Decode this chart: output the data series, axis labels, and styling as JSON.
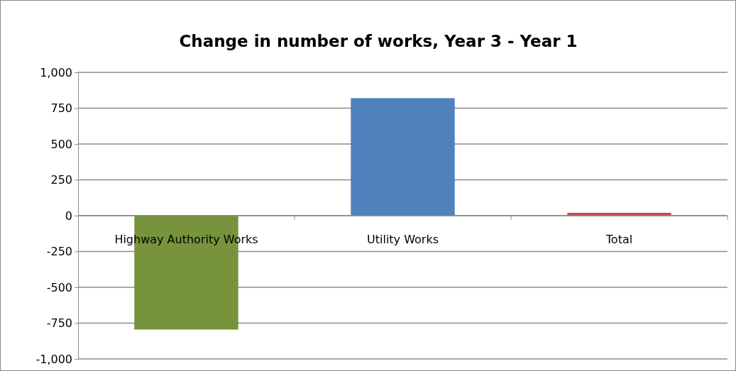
{
  "chart_data": {
    "type": "bar",
    "title": "Change in number of works, Year 3 - Year 1",
    "categories": [
      "Highway Authority Works",
      "Utility Works",
      "Total"
    ],
    "values": [
      -795,
      820,
      20
    ],
    "colors": [
      "#77933c",
      "#4f81bd",
      "#c0504d"
    ],
    "ylim": [
      -1000,
      1000
    ],
    "yticks": [
      {
        "value": 1000,
        "label": "1,000"
      },
      750,
      500,
      250,
      0,
      -250,
      -500,
      -750,
      {
        "value": -1000,
        "label": "-1,000"
      }
    ],
    "grid": "y"
  }
}
